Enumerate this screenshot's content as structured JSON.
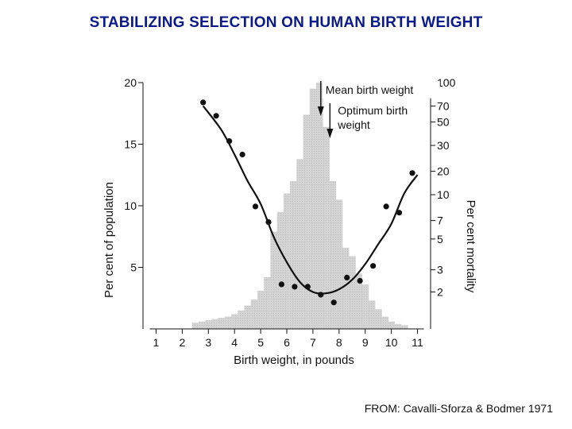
{
  "slide": {
    "title": "STABILIZING SELECTION ON HUMAN BIRTH WEIGHT",
    "credit": "FROM: Cavalli-Sforza & Bodmer 1971"
  },
  "colors": {
    "title": "#0a1a8c",
    "histogram": "#d4d4d4",
    "histogram_pattern": "#bdbdbd",
    "ink": "#111111"
  },
  "chart_data": {
    "type": "bar",
    "title": "",
    "xlabel": "Birth weight, in pounds",
    "ylabel": "Per cent of population",
    "y2label": "Per cent mortality",
    "xlim": [
      0.5,
      11.5
    ],
    "ylim": [
      0,
      20
    ],
    "x_ticks": [
      1,
      2,
      3,
      4,
      5,
      6,
      7,
      8,
      9,
      10,
      11
    ],
    "y_ticks": [
      5,
      10,
      15,
      20
    ],
    "y2_scale": "log",
    "y2_ticks": [
      2,
      3,
      5,
      7,
      10,
      20,
      30,
      50,
      70,
      100
    ],
    "y2_at_left": {
      "2": 3.0,
      "3": 4.8,
      "5": 7.3,
      "7": 8.8,
      "10": 10.9,
      "20": 12.8,
      "30": 14.9,
      "50": 16.8,
      "70": 18.1,
      "100": 20.0
    },
    "histogram": {
      "name": "Per cent of population",
      "bin_width": 0.25,
      "x": [
        2.5,
        2.75,
        3.0,
        3.25,
        3.5,
        3.75,
        4.0,
        4.25,
        4.5,
        4.75,
        5.0,
        5.25,
        5.5,
        5.75,
        6.0,
        6.25,
        6.5,
        6.75,
        7.0,
        7.25,
        7.5,
        7.75,
        8.0,
        8.25,
        8.5,
        8.75,
        9.0,
        9.25,
        9.5,
        9.75,
        10.0,
        10.25,
        10.5
      ],
      "values": [
        0.5,
        0.6,
        0.7,
        0.8,
        0.9,
        1.0,
        1.2,
        1.5,
        1.9,
        2.4,
        3.1,
        4.2,
        7.9,
        9.5,
        11.0,
        12.0,
        13.8,
        17.4,
        19.5,
        20.0,
        16.4,
        12.0,
        10.5,
        6.6,
        5.9,
        4.5,
        3.6,
        2.3,
        1.6,
        1.0,
        0.6,
        0.4,
        0.3
      ]
    },
    "mortality_points": {
      "name": "Per cent mortality",
      "x": [
        2.8,
        3.3,
        3.8,
        4.3,
        4.8,
        5.3,
        5.8,
        6.3,
        6.8,
        7.3,
        7.8,
        8.3,
        8.8,
        9.3,
        9.8,
        10.3,
        10.8
      ],
      "values": [
        74,
        57,
        33,
        26,
        8.5,
        6.8,
        2.3,
        2.2,
        2.2,
        1.9,
        1.65,
        2.6,
        2.45,
        3.2,
        8.5,
        7.8,
        19
      ]
    },
    "mortality_curve": {
      "name": "Fitted mortality curve",
      "x": [
        2.8,
        3.5,
        4.0,
        4.5,
        5.0,
        5.5,
        6.0,
        6.5,
        7.0,
        7.5,
        8.0,
        8.5,
        9.0,
        9.5,
        10.0,
        10.5,
        11.0
      ],
      "values": [
        70,
        42,
        26,
        15,
        8.8,
        5.2,
        3.4,
        2.4,
        2.0,
        1.95,
        2.1,
        2.5,
        3.3,
        4.6,
        6.6,
        10.5,
        18
      ]
    },
    "annotations": [
      {
        "text_lines": [
          "Mean birth weight"
        ],
        "arrow_x": 7.3
      },
      {
        "text_lines": [
          "Optimum birth",
          "weight"
        ],
        "arrow_x": 7.65
      }
    ]
  }
}
